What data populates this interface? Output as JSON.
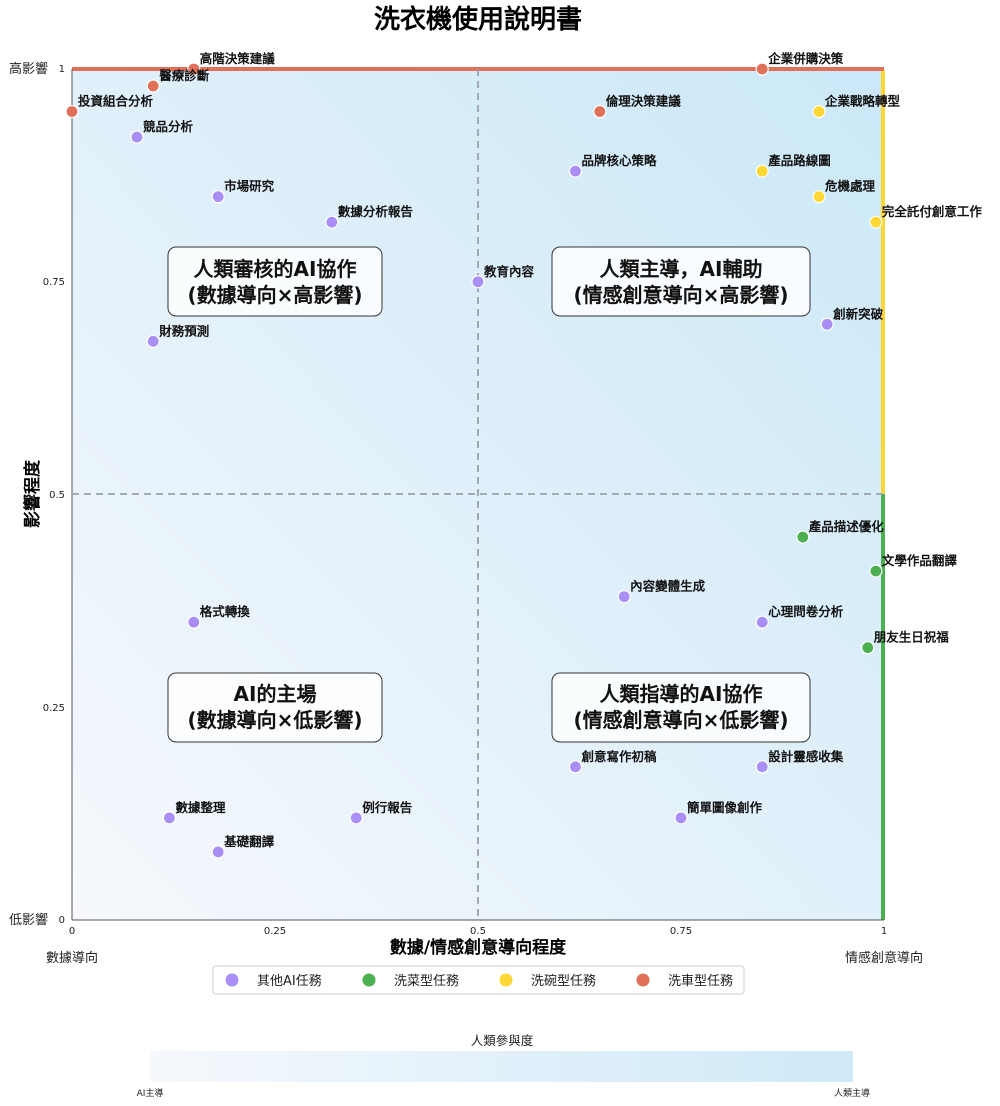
{
  "chart_data": {
    "type": "scatter",
    "title": "洗衣機使用說明書",
    "xlabel": "數據/情感創意導向程度",
    "ylabel": "影響程度",
    "xlim": [
      0,
      1
    ],
    "ylim": [
      0,
      1
    ],
    "x_ticks": [
      "0",
      "0.25",
      "0.5",
      "0.75",
      "1"
    ],
    "y_ticks": [
      "0",
      "0.25",
      "0.5",
      "0.75",
      "1"
    ],
    "x_end_labels": {
      "left": "數據導向",
      "right": "情感創意導向"
    },
    "y_end_labels": {
      "top": "高影響",
      "bottom": "低影響"
    },
    "grid": false,
    "quadrant_lines": [
      0.5,
      0.5
    ],
    "quadrants": [
      {
        "id": "top-left",
        "line1": "人類審核的AI協作",
        "line2": "(數據導向×高影響)",
        "x": 0.25,
        "y": 0.75
      },
      {
        "id": "top-right",
        "line1": "人類主導，AI輔助",
        "line2": "(情感創意導向×高影響)",
        "x": 0.75,
        "y": 0.75
      },
      {
        "id": "bottom-left",
        "line1": "AI的主場",
        "line2": "(數據導向×低影響)",
        "x": 0.25,
        "y": 0.25
      },
      {
        "id": "bottom-right",
        "line1": "人類指導的AI協作",
        "line2": "(情感創意導向×低影響)",
        "x": 0.75,
        "y": 0.25
      }
    ],
    "legend_placement": "bottom-center",
    "series": [
      {
        "name": "其他AI任務",
        "color": "#a98ef5",
        "points": [
          {
            "label": "競品分析",
            "x": 0.08,
            "y": 0.92
          },
          {
            "label": "市場研究",
            "x": 0.18,
            "y": 0.85
          },
          {
            "label": "數據分析報告",
            "x": 0.32,
            "y": 0.82
          },
          {
            "label": "財務預測",
            "x": 0.1,
            "y": 0.68
          },
          {
            "label": "教育內容",
            "x": 0.5,
            "y": 0.75
          },
          {
            "label": "品牌核心策略",
            "x": 0.62,
            "y": 0.88
          },
          {
            "label": "創新突破",
            "x": 0.93,
            "y": 0.7
          },
          {
            "label": "格式轉換",
            "x": 0.15,
            "y": 0.35
          },
          {
            "label": "內容變體生成",
            "x": 0.68,
            "y": 0.38
          },
          {
            "label": "心理問卷分析",
            "x": 0.85,
            "y": 0.35
          },
          {
            "label": "創意寫作初稿",
            "x": 0.62,
            "y": 0.18
          },
          {
            "label": "設計靈感收集",
            "x": 0.85,
            "y": 0.18
          },
          {
            "label": "數據整理",
            "x": 0.12,
            "y": 0.12
          },
          {
            "label": "例行報告",
            "x": 0.35,
            "y": 0.12
          },
          {
            "label": "簡單圖像創作",
            "x": 0.75,
            "y": 0.12
          },
          {
            "label": "基礎翻譯",
            "x": 0.18,
            "y": 0.08
          }
        ]
      },
      {
        "name": "洗菜型任務",
        "color": "#4caf50",
        "points": [
          {
            "label": "產品描述優化",
            "x": 0.9,
            "y": 0.45
          },
          {
            "label": "文學作品翻譯",
            "x": 0.99,
            "y": 0.41
          },
          {
            "label": "朋友生日祝福",
            "x": 0.98,
            "y": 0.32
          }
        ]
      },
      {
        "name": "洗碗型任務",
        "color": "#fdd835",
        "points": [
          {
            "label": "企業戰略轉型",
            "x": 0.92,
            "y": 0.95
          },
          {
            "label": "產品路線圖",
            "x": 0.85,
            "y": 0.88
          },
          {
            "label": "危機處理",
            "x": 0.92,
            "y": 0.85
          },
          {
            "label": "完全託付創意工作",
            "x": 0.99,
            "y": 0.82
          }
        ]
      },
      {
        "name": "洗車型任務",
        "color": "#e07058",
        "points": [
          {
            "label": "高階決策建議",
            "x": 0.15,
            "y": 1.0
          },
          {
            "label": "醫療診斷",
            "x": 0.1,
            "y": 0.98
          },
          {
            "label": "投資組合分析",
            "x": 0.0,
            "y": 0.95
          },
          {
            "label": "企業併購決策",
            "x": 0.85,
            "y": 1.0
          },
          {
            "label": "倫理決策建議",
            "x": 0.65,
            "y": 0.95
          }
        ]
      }
    ],
    "colorbar": {
      "label": "人類參與度",
      "left_label": "AI主導",
      "right_label": "人類主導",
      "color_low": "#f5f8fc",
      "color_high": "#cfe9f8"
    },
    "edge_bands": {
      "top": "#e07058",
      "right_upper": "#fdd835",
      "right_lower": "#4caf50"
    }
  }
}
